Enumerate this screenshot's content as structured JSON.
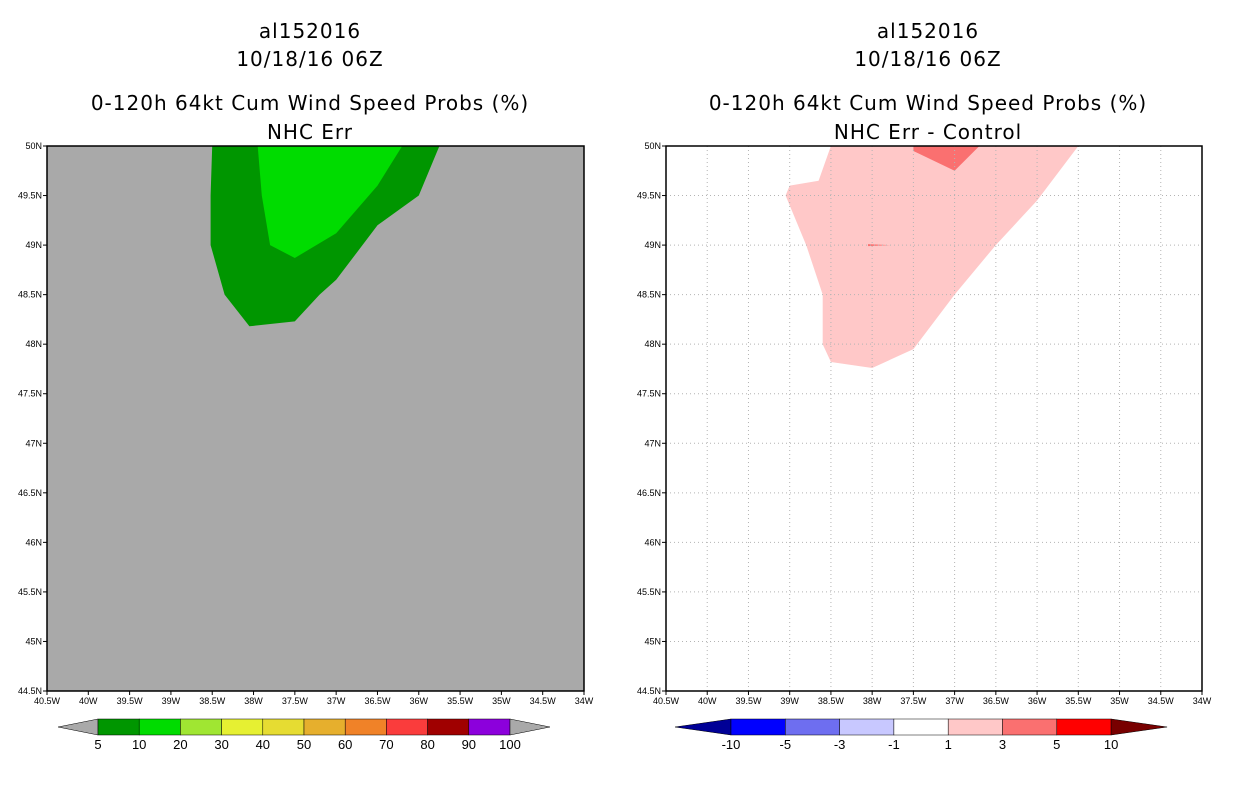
{
  "panels": [
    {
      "id": "left",
      "storm": "al152016",
      "datetime": "10/18/16 06Z",
      "title": "0-120h 64kt Cum Wind Speed Probs (%)",
      "subtitle": "NHC Err",
      "background": "#a9a9a9",
      "grid": false
    },
    {
      "id": "right",
      "storm": "al152016",
      "datetime": "10/18/16 06Z",
      "title": "0-120h 64kt Cum Wind Speed Probs (%)",
      "subtitle": "NHC Err - Control",
      "background": "#ffffff",
      "grid": true
    }
  ],
  "chart_data": [
    {
      "type": "filled-contour-map",
      "title": "0-120h 64kt Cum Wind Speed Probs (%)",
      "subtitle": "NHC Err",
      "xlim": [
        -40.5,
        -34
      ],
      "ylim": [
        44.5,
        50
      ],
      "x_tick_labels": [
        "40.5W",
        "40W",
        "39.5W",
        "39W",
        "38.5W",
        "38W",
        "37.5W",
        "37W",
        "36.5W",
        "36W",
        "35.5W",
        "35W",
        "34.5W",
        "34W"
      ],
      "y_tick_labels": [
        "44.5N",
        "45N",
        "45.5N",
        "46N",
        "46.5N",
        "47N",
        "47.5N",
        "48N",
        "48.5N",
        "49N",
        "49.5N",
        "50N"
      ],
      "regions": [
        {
          "name": "5-10%",
          "color": "#009600",
          "polygon": [
            [
              -38.5,
              50
            ],
            [
              -38.52,
              49.5
            ],
            [
              -38.52,
              49.0
            ],
            [
              -38.35,
              48.5
            ],
            [
              -38.05,
              48.18
            ],
            [
              -37.5,
              48.23
            ],
            [
              -37.2,
              48.5
            ],
            [
              -37.0,
              48.65
            ],
            [
              -36.5,
              49.2
            ],
            [
              -36.0,
              49.5
            ],
            [
              -35.75,
              50
            ]
          ]
        },
        {
          "name": "10-20%",
          "color": "#00dc00",
          "polygon": [
            [
              -37.95,
              50
            ],
            [
              -37.9,
              49.5
            ],
            [
              -37.8,
              49.0
            ],
            [
              -37.5,
              48.87
            ],
            [
              -37.0,
              49.12
            ],
            [
              -36.5,
              49.6
            ],
            [
              -36.2,
              50
            ]
          ]
        }
      ],
      "colorbar": {
        "labels": [
          "5",
          "10",
          "20",
          "30",
          "40",
          "50",
          "60",
          "70",
          "80",
          "90",
          "100"
        ],
        "colors": [
          "#009600",
          "#00dc00",
          "#a0e632",
          "#e6f032",
          "#e6dc32",
          "#e6af2d",
          "#f08228",
          "#fa3c3c",
          "#a00000",
          "#8c00dc"
        ],
        "extend_colors": [
          "#a9a9a9",
          "#a9a9a9"
        ]
      }
    },
    {
      "type": "filled-contour-map",
      "title": "0-120h 64kt Cum Wind Speed Probs (%)",
      "subtitle": "NHC Err - Control",
      "xlim": [
        -40.5,
        -34
      ],
      "ylim": [
        44.5,
        50
      ],
      "x_tick_labels": [
        "40.5W",
        "40W",
        "39.5W",
        "39W",
        "38.5W",
        "38W",
        "37.5W",
        "37W",
        "36.5W",
        "36W",
        "35.5W",
        "35W",
        "34.5W",
        "34W"
      ],
      "y_tick_labels": [
        "44.5N",
        "45N",
        "45.5N",
        "46N",
        "46.5N",
        "47N",
        "47.5N",
        "48N",
        "48.5N",
        "49N",
        "49.5N",
        "50N"
      ],
      "regions": [
        {
          "name": "1 to 3",
          "color": "#ffc8c8",
          "polygon": [
            [
              -38.5,
              50
            ],
            [
              -38.65,
              49.65
            ],
            [
              -39.0,
              49.6
            ],
            [
              -39.05,
              49.5
            ],
            [
              -38.8,
              49.0
            ],
            [
              -38.6,
              48.5
            ],
            [
              -38.6,
              48.0
            ],
            [
              -38.5,
              47.82
            ],
            [
              -38.0,
              47.76
            ],
            [
              -37.5,
              47.95
            ],
            [
              -37.0,
              48.5
            ],
            [
              -36.5,
              49.0
            ],
            [
              -36.0,
              49.45
            ],
            [
              -35.5,
              50
            ]
          ]
        },
        {
          "name": "3 to 5 (top)",
          "color": "#fa7070",
          "polygon": [
            [
              -37.5,
              50
            ],
            [
              -37.5,
              49.95
            ],
            [
              -37.0,
              49.75
            ],
            [
              -36.7,
              50
            ]
          ]
        },
        {
          "name": "3 to 5 (spot)",
          "color": "#fa7070",
          "polygon": [
            [
              -38.05,
              49.01
            ],
            [
              -37.78,
              49.0
            ],
            [
              -38.05,
              48.99
            ]
          ]
        }
      ],
      "colorbar": {
        "labels": [
          "-10",
          "-5",
          "-3",
          "-1",
          "1",
          "3",
          "5",
          "10"
        ],
        "colors": [
          "#0000ff",
          "#6e6ef0",
          "#c8c8ff",
          "#ffffff",
          "#ffc8c8",
          "#fa7070",
          "#ff0000"
        ],
        "extend_colors": [
          "#000096",
          "#780000"
        ]
      }
    }
  ]
}
